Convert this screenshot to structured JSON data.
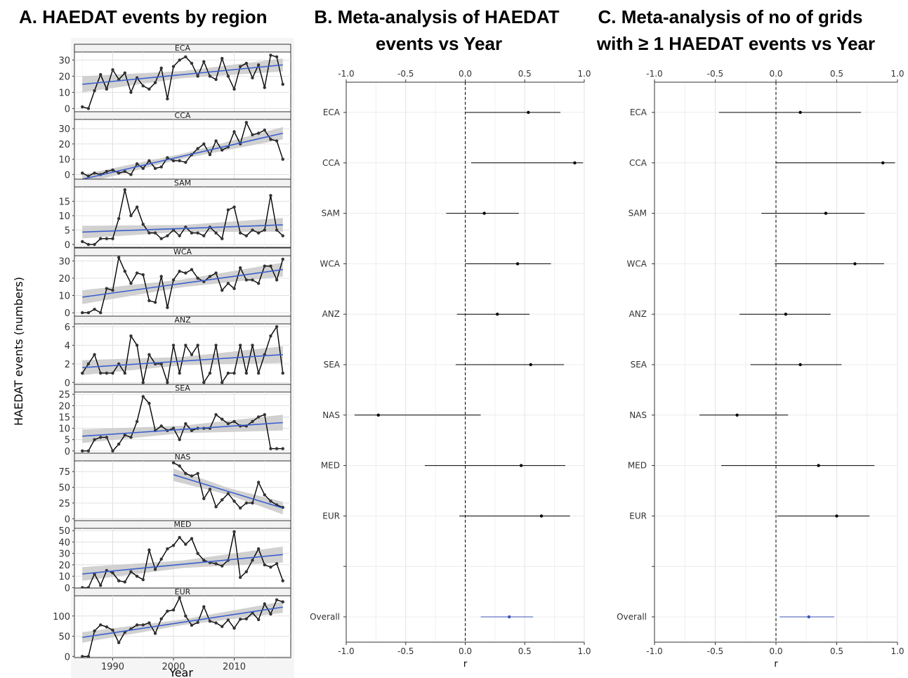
{
  "titles": {
    "a": "A. HAEDAT events by region",
    "b_line1": "B. Meta-analysis of HAEDAT",
    "b_line2": "events vs Year",
    "c_line1": "C. Meta-analysis of no of grids",
    "c_line2": "with ≥ 1 HAEDAT events vs Year"
  },
  "colors": {
    "trend": "#3a5fcd",
    "ribbon": "#c9c9c9",
    "series": "#000000",
    "overall": "#3a50b4"
  },
  "chart_data": [
    {
      "type": "line",
      "panel": "A",
      "title": "A. HAEDAT events by region",
      "xlabel": "Year",
      "ylabel": "HAEDAT events (numbers)",
      "xlim": [
        1983.7,
        2019.3
      ],
      "xticks": [
        1990,
        2000,
        2010
      ],
      "facets": [
        {
          "name": "ECA",
          "ylim": [
            -2,
            35
          ],
          "yticks": [
            0,
            10,
            20,
            30
          ],
          "x": [
            1985,
            1986,
            1987,
            1988,
            1989,
            1990,
            1991,
            1992,
            1993,
            1994,
            1995,
            1996,
            1997,
            1998,
            1999,
            2000,
            2001,
            2002,
            2003,
            2004,
            2005,
            2006,
            2007,
            2008,
            2009,
            2010,
            2011,
            2012,
            2013,
            2014,
            2015,
            2016,
            2017,
            2018
          ],
          "values": [
            1,
            0,
            11,
            21,
            12,
            24,
            18,
            22,
            10,
            19,
            14,
            12,
            16,
            25,
            6,
            26,
            30,
            32,
            28,
            20,
            29,
            20,
            18,
            31,
            20,
            12,
            26,
            28,
            19,
            27,
            13,
            33,
            32,
            15
          ],
          "trend": [
            15,
            27
          ],
          "band": [
            5,
            4
          ]
        },
        {
          "name": "CCA",
          "ylim": [
            -3,
            36
          ],
          "yticks": [
            0,
            10,
            20,
            30
          ],
          "x": [
            1985,
            1986,
            1987,
            1988,
            1989,
            1990,
            1991,
            1992,
            1993,
            1994,
            1995,
            1996,
            1997,
            1998,
            1999,
            2000,
            2001,
            2002,
            2003,
            2004,
            2005,
            2006,
            2007,
            2008,
            2009,
            2010,
            2011,
            2012,
            2013,
            2014,
            2015,
            2016,
            2017,
            2018
          ],
          "values": [
            1,
            -1,
            1,
            0,
            2,
            3,
            1,
            2,
            0,
            7,
            4,
            9,
            4,
            5,
            11,
            9,
            9,
            8,
            13,
            17,
            20,
            13,
            22,
            16,
            18,
            28,
            20,
            34,
            26,
            27,
            29,
            23,
            22,
            10
          ],
          "trend": [
            -3,
            27
          ],
          "band": [
            3,
            4
          ]
        },
        {
          "name": "SAM",
          "ylim": [
            -1,
            20
          ],
          "yticks": [
            0,
            5,
            10,
            15
          ],
          "x": [
            1985,
            1986,
            1987,
            1988,
            1989,
            1990,
            1991,
            1992,
            1993,
            1994,
            1995,
            1996,
            1997,
            1998,
            1999,
            2000,
            2001,
            2002,
            2003,
            2004,
            2005,
            2006,
            2007,
            2008,
            2009,
            2010,
            2011,
            2012,
            2013,
            2014,
            2015,
            2016,
            2017,
            2018
          ],
          "values": [
            1,
            0,
            0,
            2,
            2,
            2,
            9,
            19,
            10,
            13,
            7,
            4,
            4,
            2,
            3,
            5,
            3,
            6,
            4,
            4,
            3,
            6,
            4,
            2,
            12,
            13,
            4,
            3,
            5,
            4,
            5,
            17,
            5,
            3
          ],
          "trend": [
            4.3,
            6.8
          ],
          "band": [
            2.2,
            2.4
          ]
        },
        {
          "name": "WCA",
          "ylim": [
            -2,
            33
          ],
          "yticks": [
            0,
            10,
            20,
            30
          ],
          "x": [
            1985,
            1986,
            1987,
            1988,
            1989,
            1990,
            1991,
            1992,
            1993,
            1994,
            1995,
            1996,
            1997,
            1998,
            1999,
            2000,
            2001,
            2002,
            2003,
            2004,
            2005,
            2006,
            2007,
            2008,
            2009,
            2010,
            2011,
            2012,
            2013,
            2014,
            2015,
            2016,
            2017,
            2018
          ],
          "values": [
            0,
            0,
            2,
            0,
            14,
            13,
            32,
            24,
            17,
            23,
            22,
            7,
            6,
            21,
            3,
            19,
            24,
            23,
            25,
            20,
            18,
            21,
            23,
            13,
            17,
            14,
            26,
            19,
            19,
            17,
            27,
            27,
            19,
            31
          ],
          "trend": [
            9,
            25
          ],
          "band": [
            4,
            4
          ]
        },
        {
          "name": "ANZ",
          "ylim": [
            -0.2,
            6.3
          ],
          "yticks": [
            0,
            2,
            4,
            6
          ],
          "x": [
            1985,
            1986,
            1987,
            1988,
            1989,
            1990,
            1991,
            1992,
            1993,
            1994,
            1995,
            1996,
            1997,
            1998,
            1999,
            2000,
            2001,
            2002,
            2003,
            2004,
            2005,
            2006,
            2007,
            2008,
            2009,
            2010,
            2011,
            2012,
            2013,
            2014,
            2015,
            2016,
            2017,
            2018
          ],
          "values": [
            1,
            2,
            3,
            1,
            1,
            1,
            2,
            1,
            5,
            4,
            0,
            3,
            2,
            2,
            0,
            4,
            1,
            4,
            3,
            4,
            0,
            1,
            4,
            0,
            1,
            1,
            4,
            1,
            4,
            1,
            3,
            5,
            6,
            1
          ],
          "trend": [
            1.6,
            3.0
          ],
          "band": [
            0.8,
            0.9
          ]
        },
        {
          "name": "SEA",
          "ylim": [
            -1,
            26
          ],
          "yticks": [
            0,
            5,
            10,
            15,
            20,
            25
          ],
          "x": [
            1985,
            1986,
            1987,
            1988,
            1989,
            1990,
            1991,
            1992,
            1993,
            1994,
            1995,
            1996,
            1997,
            1998,
            1999,
            2000,
            2001,
            2002,
            2003,
            2004,
            2005,
            2006,
            2007,
            2008,
            2009,
            2010,
            2011,
            2012,
            2013,
            2014,
            2015,
            2016,
            2017,
            2018
          ],
          "values": [
            0,
            0,
            5,
            6,
            6,
            0,
            3,
            7,
            6,
            13,
            24,
            21,
            9,
            11,
            9,
            10,
            5,
            12,
            9,
            10,
            10,
            10,
            16,
            14,
            12,
            13,
            11,
            11,
            13,
            15,
            16,
            1,
            1,
            1
          ],
          "trend": [
            6.5,
            12.5
          ],
          "band": [
            3,
            3.5
          ]
        },
        {
          "name": "NAS",
          "ylim": [
            -3,
            92
          ],
          "yticks": [
            0,
            25,
            50,
            75
          ],
          "x": [
            2000,
            2001,
            2002,
            2003,
            2004,
            2005,
            2006,
            2007,
            2008,
            2009,
            2010,
            2011,
            2012,
            2013,
            2014,
            2015,
            2016,
            2017,
            2018
          ],
          "values": [
            89,
            84,
            72,
            68,
            72,
            32,
            47,
            19,
            30,
            40,
            28,
            17,
            25,
            25,
            58,
            38,
            28,
            22,
            18
          ],
          "trend": [
            70,
            17
          ],
          "band": [
            10,
            10
          ],
          "trend_start": 2000
        },
        {
          "name": "MED",
          "ylim": [
            -1,
            52
          ],
          "yticks": [
            0,
            10,
            20,
            30,
            40,
            50
          ],
          "x": [
            1985,
            1986,
            1987,
            1988,
            1989,
            1990,
            1991,
            1992,
            1993,
            1994,
            1995,
            1996,
            1997,
            1998,
            1999,
            2000,
            2001,
            2002,
            2003,
            2004,
            2005,
            2006,
            2007,
            2008,
            2009,
            2010,
            2011,
            2012,
            2013,
            2014,
            2015,
            2016,
            2017,
            2018
          ],
          "values": [
            0,
            0,
            12,
            2,
            15,
            13,
            6,
            5,
            14,
            10,
            7,
            33,
            16,
            25,
            34,
            37,
            44,
            38,
            43,
            30,
            24,
            22,
            21,
            19,
            24,
            49,
            9,
            14,
            24,
            34,
            20,
            18,
            21,
            6
          ],
          "trend": [
            12,
            29
          ],
          "band": [
            6,
            7
          ]
        },
        {
          "name": "EUR",
          "ylim": [
            -3,
            150
          ],
          "yticks": [
            0,
            50,
            100
          ],
          "x": [
            1985,
            1986,
            1987,
            1988,
            1989,
            1990,
            1991,
            1992,
            1993,
            1994,
            1995,
            1996,
            1997,
            1998,
            1999,
            2000,
            2001,
            2002,
            2003,
            2004,
            2005,
            2006,
            2007,
            2008,
            2009,
            2010,
            2011,
            2012,
            2013,
            2014,
            2015,
            2016,
            2017,
            2018
          ],
          "values": [
            0,
            0,
            63,
            78,
            73,
            65,
            34,
            60,
            68,
            78,
            78,
            83,
            57,
            93,
            112,
            115,
            145,
            100,
            77,
            84,
            123,
            87,
            83,
            74,
            90,
            70,
            92,
            93,
            108,
            91,
            130,
            105,
            140,
            135
          ],
          "trend": [
            47,
            122
          ],
          "band": [
            13,
            14
          ]
        }
      ]
    },
    {
      "type": "forest",
      "panel": "B",
      "title": "B. Meta-analysis of HAEDAT events vs Year",
      "xlabel": "r",
      "xlim": [
        -1.0,
        1.0
      ],
      "xticks": [
        "-1.0",
        "-0.5",
        "0.0",
        "0.5",
        "1.0"
      ],
      "rows": [
        {
          "label": "ECA",
          "est": 0.53,
          "lo": 0.0,
          "hi": 0.8
        },
        {
          "label": "CCA",
          "est": 0.92,
          "lo": 0.05,
          "hi": 0.99
        },
        {
          "label": "SAM",
          "est": 0.16,
          "lo": -0.16,
          "hi": 0.45
        },
        {
          "label": "WCA",
          "est": 0.44,
          "lo": 0.0,
          "hi": 0.72
        },
        {
          "label": "ANZ",
          "est": 0.27,
          "lo": -0.07,
          "hi": 0.54
        },
        {
          "label": "SEA",
          "est": 0.55,
          "lo": -0.08,
          "hi": 0.83
        },
        {
          "label": "NAS",
          "est": -0.73,
          "lo": -0.93,
          "hi": 0.13
        },
        {
          "label": "MED",
          "est": 0.47,
          "lo": -0.34,
          "hi": 0.84
        },
        {
          "label": "EUR",
          "est": 0.64,
          "lo": -0.05,
          "hi": 0.88
        },
        {
          "label": "",
          "est": null,
          "lo": null,
          "hi": null
        },
        {
          "label": "Overall",
          "est": 0.37,
          "lo": 0.13,
          "hi": 0.57,
          "overall": true
        }
      ]
    },
    {
      "type": "forest",
      "panel": "C",
      "title": "C. Meta-analysis of no of grids with ≥ 1 HAEDAT events vs Year",
      "xlabel": "r",
      "xlim": [
        -1.0,
        1.0
      ],
      "xticks": [
        "-1.0",
        "-0.5",
        "0.0",
        "0.5",
        "1.0"
      ],
      "rows": [
        {
          "label": "ECA",
          "est": 0.2,
          "lo": -0.47,
          "hi": 0.7
        },
        {
          "label": "CCA",
          "est": 0.88,
          "lo": 0.0,
          "hi": 0.98
        },
        {
          "label": "SAM",
          "est": 0.41,
          "lo": -0.12,
          "hi": 0.73
        },
        {
          "label": "WCA",
          "est": 0.65,
          "lo": -0.01,
          "hi": 0.89
        },
        {
          "label": "ANZ",
          "est": 0.08,
          "lo": -0.3,
          "hi": 0.45
        },
        {
          "label": "SEA",
          "est": 0.2,
          "lo": -0.21,
          "hi": 0.54
        },
        {
          "label": "NAS",
          "est": -0.32,
          "lo": -0.63,
          "hi": 0.1
        },
        {
          "label": "MED",
          "est": 0.35,
          "lo": -0.45,
          "hi": 0.81
        },
        {
          "label": "EUR",
          "est": 0.5,
          "lo": 0.01,
          "hi": 0.77
        },
        {
          "label": "",
          "est": null,
          "lo": null,
          "hi": null
        },
        {
          "label": "Overall",
          "est": 0.27,
          "lo": 0.03,
          "hi": 0.48,
          "overall": true
        }
      ]
    }
  ]
}
